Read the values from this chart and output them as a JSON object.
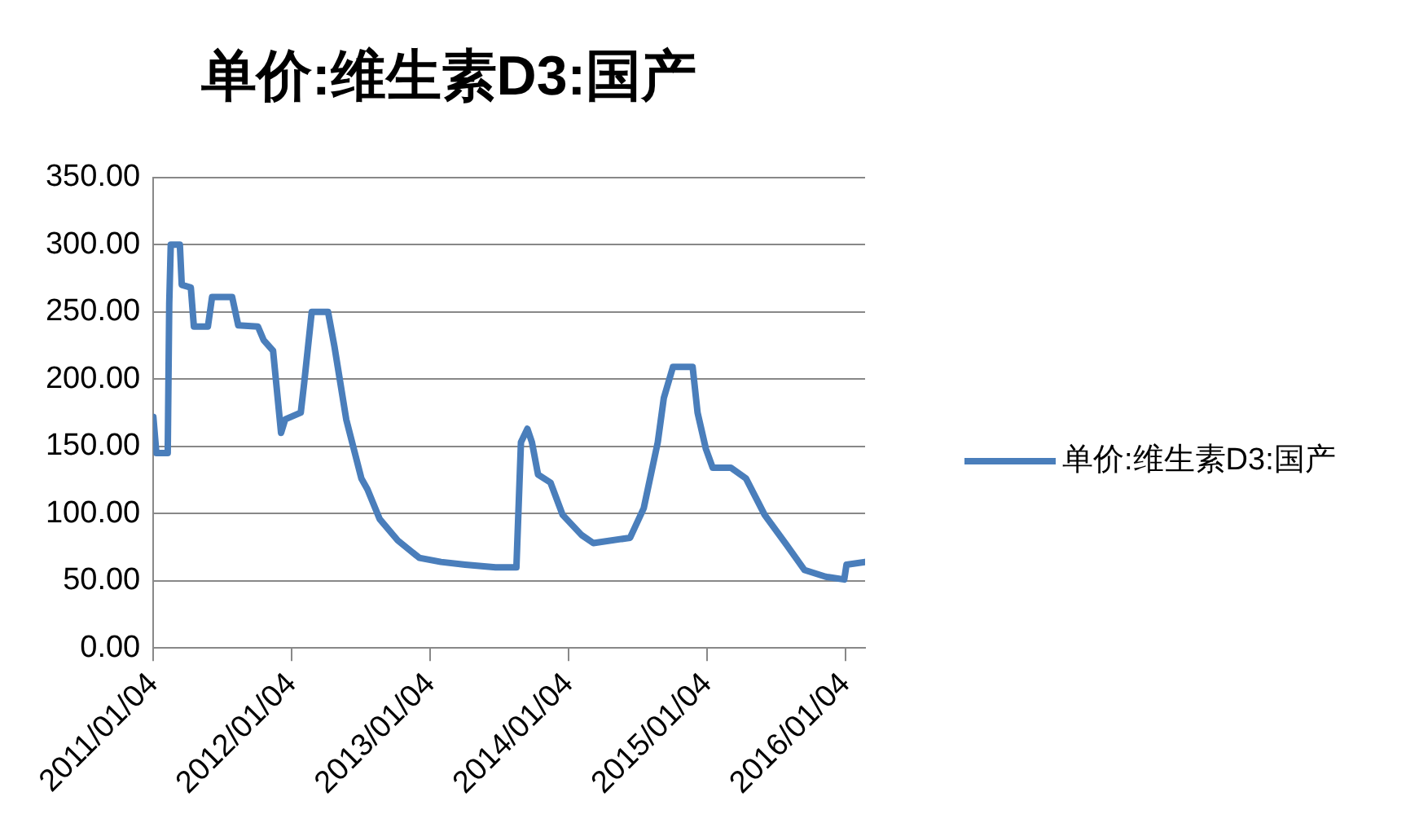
{
  "chart_data": {
    "type": "line",
    "title": "单价:维生素D3:国产",
    "legend": "right",
    "grid": "y",
    "marker": "none",
    "line_style": "solid",
    "xlim": [
      "2011-01-04",
      "2016-02-25"
    ],
    "xticks": [
      {
        "value": "2011-01-04",
        "label": "2011/01/04"
      },
      {
        "value": "2012-01-04",
        "label": "2012/01/04"
      },
      {
        "value": "2013-01-04",
        "label": "2013/01/04"
      },
      {
        "value": "2014-01-04",
        "label": "2014/01/04"
      },
      {
        "value": "2015-01-04",
        "label": "2015/01/04"
      },
      {
        "value": "2016-01-04",
        "label": "2016/01/04"
      }
    ],
    "ylim": [
      0,
      350
    ],
    "yticks": [
      {
        "value": 0,
        "label": "0.00"
      },
      {
        "value": 50,
        "label": "50.00"
      },
      {
        "value": 100,
        "label": "100.00"
      },
      {
        "value": 150,
        "label": "150.00"
      },
      {
        "value": 200,
        "label": "200.00"
      },
      {
        "value": 250,
        "label": "250.00"
      },
      {
        "value": 300,
        "label": "300.00"
      },
      {
        "value": 350,
        "label": "350.00"
      }
    ],
    "series": [
      {
        "name": "单价:维生素D3:国产",
        "color": "#4a7ebb",
        "x": [
          "2011-01-04",
          "2011-01-12",
          "2011-02-11",
          "2011-02-15",
          "2011-02-19",
          "2011-03-15",
          "2011-03-20",
          "2011-04-13",
          "2011-04-21",
          "2011-05-28",
          "2011-06-08",
          "2011-07-31",
          "2011-08-16",
          "2011-10-07",
          "2011-10-22",
          "2011-11-16",
          "2011-12-07",
          "2011-12-18",
          "2012-01-28",
          "2012-02-06",
          "2012-02-26",
          "2012-04-09",
          "2012-04-26",
          "2012-05-27",
          "2012-07-06",
          "2012-07-22",
          "2012-08-23",
          "2012-10-10",
          "2012-12-06",
          "2013-02-01",
          "2013-04-06",
          "2013-06-25",
          "2013-08-19",
          "2013-08-31",
          "2013-09-17",
          "2013-09-29",
          "2013-10-15",
          "2013-11-17",
          "2013-12-19",
          "2014-02-07",
          "2014-03-10",
          "2014-06-15",
          "2014-07-21",
          "2014-08-27",
          "2014-09-12",
          "2014-10-06",
          "2014-11-27",
          "2014-12-10",
          "2015-01-01",
          "2015-01-19",
          "2015-03-08",
          "2015-04-17",
          "2015-06-05",
          "2015-08-01",
          "2015-09-18",
          "2015-11-13",
          "2016-01-01",
          "2016-01-07",
          "2016-02-25"
        ],
        "values": [
          172,
          145,
          145,
          256,
          300,
          300,
          270,
          268,
          239,
          239,
          261,
          261,
          240,
          239,
          229,
          221,
          160,
          170,
          175,
          197,
          250,
          250,
          224,
          170,
          126,
          118,
          96,
          80,
          67,
          64,
          62,
          60,
          60,
          153,
          163,
          153,
          129,
          123,
          99,
          84,
          78,
          82,
          104,
          153,
          186,
          209,
          209,
          175,
          148,
          134,
          134,
          126,
          99,
          77,
          58,
          53,
          51,
          62,
          64
        ]
      }
    ]
  }
}
